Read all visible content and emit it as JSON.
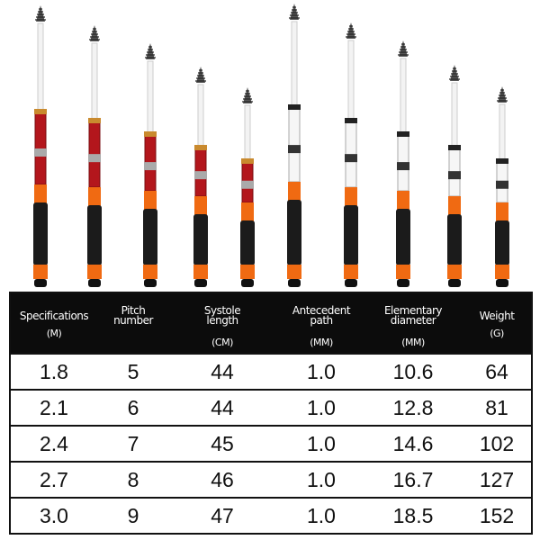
{
  "table": {
    "header": [
      {
        "lines": [
          "Specifications"
        ],
        "unit": "(M)"
      },
      {
        "lines": [
          "Pitch",
          "number"
        ],
        "unit": null
      },
      {
        "lines": [
          "Systole",
          "length"
        ],
        "unit": "(CM)"
      },
      {
        "lines": [
          "Antecedent",
          "path"
        ],
        "unit": "(MM)"
      },
      {
        "lines": [
          "Elementary",
          "diameter"
        ],
        "unit": "(MM)"
      },
      {
        "lines": [
          "Weight"
        ],
        "unit": "(G)"
      }
    ],
    "rows": [
      [
        "1.8",
        "5",
        "44",
        "1.0",
        "10.6",
        "64"
      ],
      [
        "2.1",
        "6",
        "44",
        "1.0",
        "12.8",
        "81"
      ],
      [
        "2.4",
        "7",
        "45",
        "1.0",
        "14.6",
        "102"
      ],
      [
        "2.7",
        "8",
        "46",
        "1.0",
        "16.7",
        "127"
      ],
      [
        "3.0",
        "9",
        "47",
        "1.0",
        "18.5",
        "152"
      ]
    ]
  }
}
